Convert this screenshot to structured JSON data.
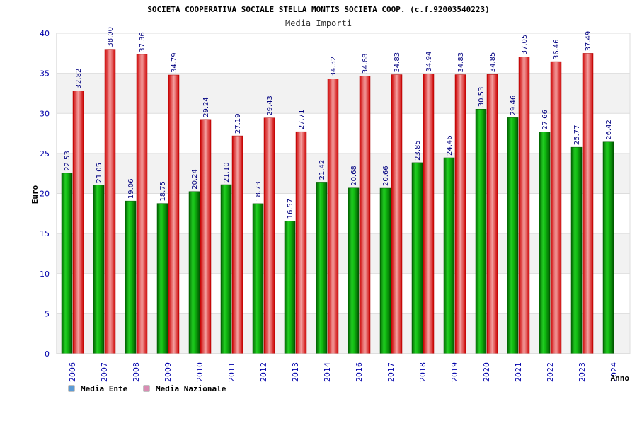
{
  "chart_data": {
    "type": "bar",
    "title": "SOCIETA COOPERATIVA SOCIALE STELLA MONTIS SOCIETA COOP. (c.f.92003540223)",
    "subtitle": "Media Importi",
    "xlabel": "Anno",
    "ylabel": "Euro",
    "ylim": [
      0,
      40
    ],
    "yticks": [
      0,
      5,
      10,
      15,
      20,
      25,
      30,
      35,
      40
    ],
    "grid": true,
    "legend_position": "bottom-left",
    "categories": [
      "2006",
      "2007",
      "2008",
      "2009",
      "2010",
      "2011",
      "2012",
      "2013",
      "2014",
      "2016",
      "2017",
      "2018",
      "2019",
      "2020",
      "2021",
      "2022",
      "2023",
      "2024"
    ],
    "series": [
      {
        "name": "Media Ente",
        "color": "#00aa00",
        "legend_color": "#5b9bd5",
        "values": [
          22.53,
          21.05,
          19.06,
          18.75,
          20.24,
          21.1,
          18.73,
          16.57,
          21.42,
          20.68,
          20.66,
          23.85,
          24.46,
          30.53,
          29.46,
          27.66,
          25.77,
          26.42
        ],
        "labels": [
          "22.53",
          "21.05",
          "19.06",
          "18.75",
          "20.24",
          "21.10",
          "18.73",
          "16.57",
          "21.42",
          "20.68",
          "20.66",
          "23.85",
          "24.46",
          "30.53",
          "29.46",
          "27.66",
          "25.77",
          "26.42"
        ]
      },
      {
        "name": "Media Nazionale",
        "color": "#ee1111",
        "legend_color": "#d98cb3",
        "values": [
          32.82,
          38.0,
          37.36,
          34.79,
          29.24,
          27.19,
          29.43,
          27.71,
          34.32,
          34.68,
          34.83,
          34.94,
          34.83,
          34.85,
          37.05,
          36.46,
          37.49,
          null
        ],
        "labels": [
          "32.82",
          "38.00",
          "37.36",
          "34.79",
          "29.24",
          "27.19",
          "29.43",
          "27.71",
          "34.32",
          "34.68",
          "34.83",
          "34.94",
          "34.83",
          "34.85",
          "37.05",
          "36.46",
          "37.49",
          null
        ]
      }
    ]
  }
}
